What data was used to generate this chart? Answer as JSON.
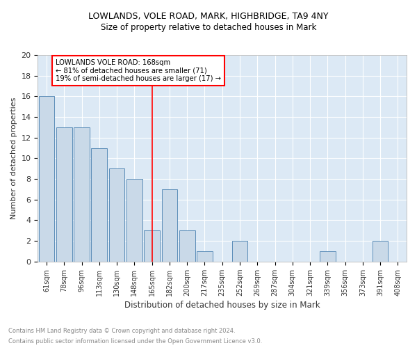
{
  "title1": "LOWLANDS, VOLE ROAD, MARK, HIGHBRIDGE, TA9 4NY",
  "title2": "Size of property relative to detached houses in Mark",
  "xlabel": "Distribution of detached houses by size in Mark",
  "ylabel": "Number of detached properties",
  "footnote1": "Contains HM Land Registry data © Crown copyright and database right 2024.",
  "footnote2": "Contains public sector information licensed under the Open Government Licence v3.0.",
  "bin_labels": [
    "61sqm",
    "78sqm",
    "96sqm",
    "113sqm",
    "130sqm",
    "148sqm",
    "165sqm",
    "182sqm",
    "200sqm",
    "217sqm",
    "235sqm",
    "252sqm",
    "269sqm",
    "287sqm",
    "304sqm",
    "321sqm",
    "339sqm",
    "356sqm",
    "373sqm",
    "391sqm",
    "408sqm"
  ],
  "bin_values": [
    16,
    13,
    13,
    11,
    9,
    8,
    3,
    7,
    3,
    1,
    0,
    2,
    0,
    0,
    0,
    0,
    1,
    0,
    0,
    2,
    0
  ],
  "bar_color": "#c9d9e8",
  "bar_edge_color": "#5b8db8",
  "vline_x_index": 6,
  "vline_color": "red",
  "annotation_title": "LOWLANDS VOLE ROAD: 168sqm",
  "annotation_line1": "← 81% of detached houses are smaller (71)",
  "annotation_line2": "19% of semi-detached houses are larger (17) →",
  "ylim": [
    0,
    20
  ],
  "yticks": [
    0,
    2,
    4,
    6,
    8,
    10,
    12,
    14,
    16,
    18,
    20
  ],
  "plot_bg_color": "#dce9f5",
  "grid_color": "#c0d0e0"
}
